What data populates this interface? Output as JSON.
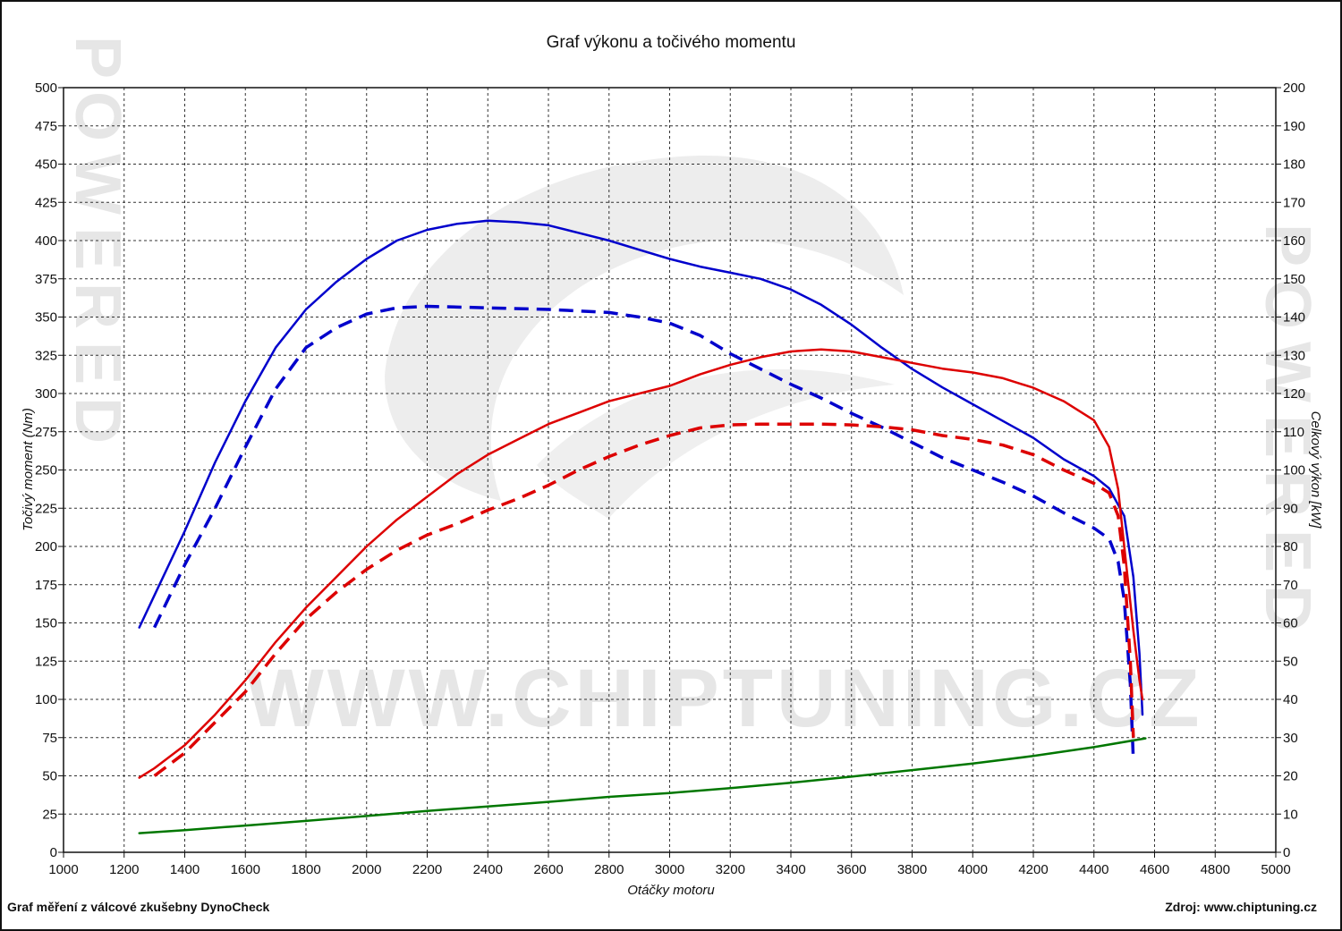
{
  "chart_data": {
    "type": "line",
    "title": "Graf výkonu a točivého momentu",
    "xlabel": "Otáčky motoru",
    "ylabel_left": "Točivý moment (Nm)",
    "ylabel_right": "Celkový výkon [kW]",
    "xlim": [
      1000,
      5000
    ],
    "ylim_left": [
      0,
      500
    ],
    "ylim_right": [
      0,
      200
    ],
    "x_ticks": [
      1000,
      1200,
      1400,
      1600,
      1800,
      2000,
      2200,
      2400,
      2600,
      2800,
      3000,
      3200,
      3400,
      3600,
      3800,
      4000,
      4200,
      4400,
      4600,
      4800,
      5000
    ],
    "y_left_ticks": [
      0,
      25,
      50,
      75,
      100,
      125,
      150,
      175,
      200,
      225,
      250,
      275,
      300,
      325,
      350,
      375,
      400,
      425,
      450,
      475,
      500
    ],
    "y_right_ticks": [
      0,
      10,
      20,
      30,
      40,
      50,
      60,
      70,
      80,
      90,
      100,
      110,
      120,
      130,
      140,
      150,
      160,
      170,
      180,
      190,
      200
    ],
    "grid": true,
    "series": [
      {
        "axis": "left",
        "color": "#0000cc",
        "style": "solid",
        "points": [
          [
            1250,
            147
          ],
          [
            1300,
            168
          ],
          [
            1400,
            210
          ],
          [
            1500,
            255
          ],
          [
            1600,
            295
          ],
          [
            1700,
            330
          ],
          [
            1800,
            355
          ],
          [
            1900,
            373
          ],
          [
            2000,
            388
          ],
          [
            2100,
            400
          ],
          [
            2200,
            407
          ],
          [
            2300,
            411
          ],
          [
            2400,
            413
          ],
          [
            2500,
            412
          ],
          [
            2600,
            410
          ],
          [
            2700,
            405
          ],
          [
            2800,
            400
          ],
          [
            2900,
            394
          ],
          [
            3000,
            388
          ],
          [
            3100,
            383
          ],
          [
            3200,
            379
          ],
          [
            3300,
            375
          ],
          [
            3400,
            368
          ],
          [
            3500,
            358
          ],
          [
            3600,
            345
          ],
          [
            3700,
            330
          ],
          [
            3800,
            316
          ],
          [
            3900,
            304
          ],
          [
            4000,
            293
          ],
          [
            4100,
            282
          ],
          [
            4200,
            271
          ],
          [
            4300,
            257
          ],
          [
            4400,
            246
          ],
          [
            4450,
            238
          ],
          [
            4500,
            220
          ],
          [
            4530,
            180
          ],
          [
            4550,
            130
          ],
          [
            4560,
            90
          ]
        ]
      },
      {
        "axis": "left",
        "color": "#0000cc",
        "style": "dashed",
        "points": [
          [
            1300,
            147
          ],
          [
            1400,
            188
          ],
          [
            1500,
            225
          ],
          [
            1600,
            265
          ],
          [
            1700,
            303
          ],
          [
            1800,
            330
          ],
          [
            1900,
            343
          ],
          [
            2000,
            352
          ],
          [
            2100,
            356
          ],
          [
            2200,
            357
          ],
          [
            2400,
            356
          ],
          [
            2600,
            355
          ],
          [
            2800,
            353
          ],
          [
            2900,
            350
          ],
          [
            3000,
            346
          ],
          [
            3100,
            338
          ],
          [
            3200,
            326
          ],
          [
            3300,
            316
          ],
          [
            3400,
            306
          ],
          [
            3500,
            297
          ],
          [
            3600,
            287
          ],
          [
            3700,
            278
          ],
          [
            3800,
            268
          ],
          [
            3900,
            258
          ],
          [
            4000,
            250
          ],
          [
            4100,
            242
          ],
          [
            4200,
            233
          ],
          [
            4300,
            222
          ],
          [
            4400,
            212
          ],
          [
            4450,
            205
          ],
          [
            4480,
            190
          ],
          [
            4500,
            165
          ],
          [
            4520,
            110
          ],
          [
            4530,
            60
          ]
        ]
      },
      {
        "axis": "right",
        "color": "#dd0000",
        "style": "solid",
        "points": [
          [
            1250,
            19.5
          ],
          [
            1300,
            22
          ],
          [
            1400,
            28
          ],
          [
            1500,
            36
          ],
          [
            1600,
            45
          ],
          [
            1700,
            55
          ],
          [
            1800,
            64
          ],
          [
            1900,
            72
          ],
          [
            2000,
            80
          ],
          [
            2100,
            87
          ],
          [
            2200,
            93
          ],
          [
            2300,
            99
          ],
          [
            2400,
            104
          ],
          [
            2500,
            108
          ],
          [
            2600,
            112
          ],
          [
            2700,
            115
          ],
          [
            2800,
            118
          ],
          [
            2900,
            120
          ],
          [
            3000,
            122
          ],
          [
            3100,
            125
          ],
          [
            3200,
            127.5
          ],
          [
            3300,
            129.5
          ],
          [
            3400,
            131
          ],
          [
            3500,
            131.5
          ],
          [
            3600,
            131
          ],
          [
            3700,
            129.5
          ],
          [
            3800,
            128
          ],
          [
            3900,
            126.5
          ],
          [
            4000,
            125.5
          ],
          [
            4100,
            124
          ],
          [
            4200,
            121.5
          ],
          [
            4300,
            118
          ],
          [
            4400,
            113
          ],
          [
            4450,
            106
          ],
          [
            4480,
            95
          ],
          [
            4500,
            80
          ],
          [
            4530,
            58
          ],
          [
            4550,
            45
          ],
          [
            4560,
            40
          ]
        ]
      },
      {
        "axis": "right",
        "color": "#dd0000",
        "style": "dashed",
        "points": [
          [
            1300,
            20
          ],
          [
            1400,
            26
          ],
          [
            1500,
            34
          ],
          [
            1600,
            42
          ],
          [
            1700,
            52
          ],
          [
            1800,
            61
          ],
          [
            1900,
            68
          ],
          [
            2000,
            74
          ],
          [
            2100,
            79
          ],
          [
            2200,
            83
          ],
          [
            2300,
            86
          ],
          [
            2400,
            89.5
          ],
          [
            2500,
            92.5
          ],
          [
            2600,
            96
          ],
          [
            2700,
            100
          ],
          [
            2800,
            103.5
          ],
          [
            2900,
            106.5
          ],
          [
            3000,
            109
          ],
          [
            3100,
            111
          ],
          [
            3200,
            111.8
          ],
          [
            3300,
            112
          ],
          [
            3400,
            112
          ],
          [
            3500,
            112
          ],
          [
            3600,
            111.8
          ],
          [
            3700,
            111.3
          ],
          [
            3800,
            110.5
          ],
          [
            3900,
            109
          ],
          [
            4000,
            108
          ],
          [
            4100,
            106.5
          ],
          [
            4200,
            104
          ],
          [
            4300,
            100
          ],
          [
            4400,
            96.5
          ],
          [
            4450,
            94
          ],
          [
            4480,
            88
          ],
          [
            4500,
            75
          ],
          [
            4520,
            50
          ],
          [
            4530,
            30
          ]
        ]
      },
      {
        "axis": "right",
        "color": "#007700",
        "style": "solid",
        "points": [
          [
            1250,
            5
          ],
          [
            1400,
            5.8
          ],
          [
            1600,
            7
          ],
          [
            1800,
            8.2
          ],
          [
            2000,
            9.5
          ],
          [
            2200,
            10.8
          ],
          [
            2400,
            12
          ],
          [
            2600,
            13.2
          ],
          [
            2800,
            14.5
          ],
          [
            3000,
            15.5
          ],
          [
            3200,
            16.8
          ],
          [
            3400,
            18.2
          ],
          [
            3600,
            19.8
          ],
          [
            3800,
            21.5
          ],
          [
            4000,
            23.2
          ],
          [
            4200,
            25.2
          ],
          [
            4400,
            27.5
          ],
          [
            4570,
            29.8
          ]
        ]
      }
    ]
  },
  "footer": {
    "left": "Graf měření z válcové zkušebny DynoCheck",
    "right": "Zdroj: www.chiptuning.cz"
  },
  "watermark": {
    "text": "WWW.CHIPTUNING.CZ",
    "side_text": "POWERED"
  }
}
